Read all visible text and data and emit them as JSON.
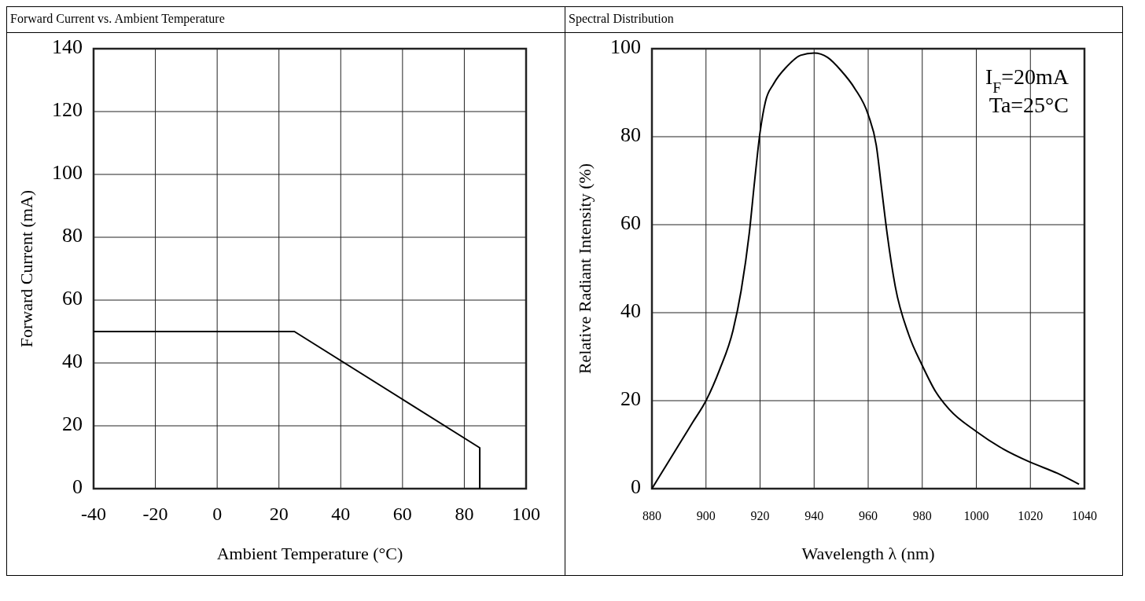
{
  "chart_data": [
    {
      "type": "line",
      "title": "Forward Current vs. Ambient Temperature",
      "xlabel": "Ambient Temperature (°C)",
      "ylabel": "Forward Current (mA)",
      "xlim": [
        -40,
        100
      ],
      "xticks": [
        -40,
        -20,
        0,
        20,
        40,
        60,
        80,
        100
      ],
      "ylim": [
        0,
        140
      ],
      "yticks": [
        0,
        20,
        40,
        60,
        80,
        100,
        120,
        140
      ],
      "grid": true,
      "series": [
        {
          "color": "#000000",
          "x": [
            -40,
            25,
            85,
            85
          ],
          "values": [
            50,
            50,
            13,
            0
          ]
        }
      ]
    },
    {
      "type": "line",
      "title": "Spectral Distribution",
      "xlabel": "Wavelength λ (nm)",
      "ylabel": "Relative Radiant Intensity (%)",
      "xlim": [
        880,
        1040
      ],
      "xticks": [
        880,
        900,
        920,
        940,
        960,
        980,
        1000,
        1020,
        1040
      ],
      "ylim": [
        0,
        100
      ],
      "yticks": [
        0,
        20,
        40,
        60,
        80,
        100
      ],
      "grid": true,
      "annotations": [
        "I$_{F}$=20mA",
        "Ta=25°C"
      ],
      "series": [
        {
          "color": "#000000",
          "x": [
            880,
            885,
            890,
            895,
            900,
            905,
            910,
            913,
            916,
            918,
            920,
            922,
            925,
            930,
            935,
            940,
            945,
            950,
            955,
            960,
            963,
            965,
            967,
            970,
            975,
            980,
            985,
            990,
            1000,
            1010,
            1020,
            1030,
            1038
          ],
          "values": [
            0,
            5,
            10,
            15,
            20,
            27,
            36,
            45,
            58,
            70,
            81,
            88,
            92,
            96,
            98.5,
            99,
            98,
            95,
            91,
            85,
            78,
            68,
            58,
            46,
            35,
            28,
            22,
            18,
            13,
            9,
            6,
            3.5,
            1
          ]
        }
      ]
    }
  ]
}
